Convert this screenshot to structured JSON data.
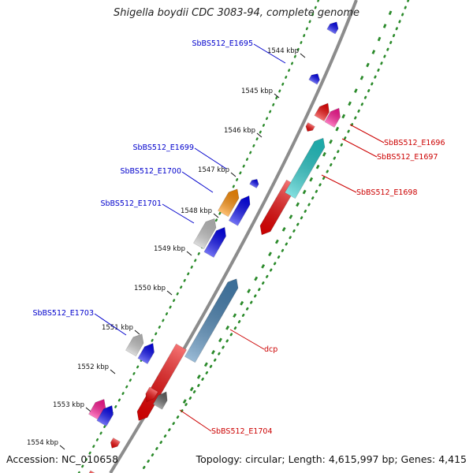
{
  "title": "Shigella boydii CDC 3083-94, complete genome",
  "accession": "Accession: NC_010658",
  "summary": "Topology: circular; Length: 4,615,997 bp; Genes: 4,415",
  "colors": {
    "backbone": "#8c8c8c",
    "dots": "#2a8a2a",
    "fwd_label": "#0000cc",
    "rev_label": "#cc0000"
  },
  "ticks": [
    "1544 kbp",
    "1545 kbp",
    "1546 kbp",
    "1547 kbp",
    "1548 kbp",
    "1549 kbp",
    "1550 kbp",
    "1551 kbp",
    "1552 kbp",
    "1553 kbp",
    "1554 kbp"
  ],
  "forward_labels": [
    "SbBS512_E1695",
    "SbBS512_E1699",
    "SbBS512_E1700",
    "SbBS512_E1701",
    "SbBS512_E1703"
  ],
  "reverse_labels": [
    "SbBS512_E1696",
    "SbBS512_E1697",
    "SbBS512_E1698",
    "dcp",
    "SbBS512_E1704"
  ]
}
